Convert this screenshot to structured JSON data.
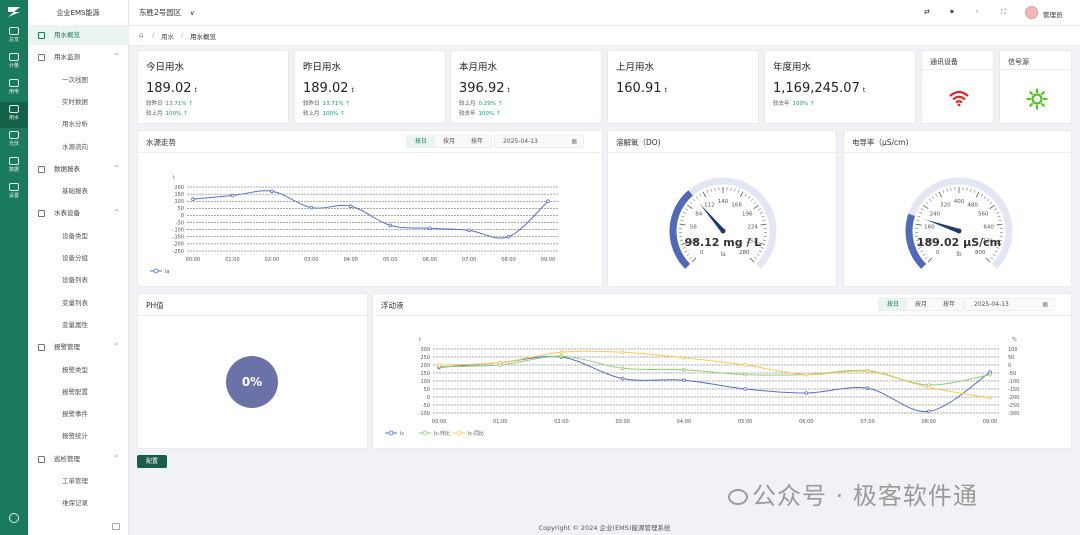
{
  "rail": [
    {
      "label": "总览",
      "icon": "dashboard-icon"
    },
    {
      "label": "计量",
      "icon": "meter-icon"
    },
    {
      "label": "用电",
      "icon": "electricity-icon"
    },
    {
      "label": "用水",
      "icon": "water-icon",
      "active": true
    },
    {
      "label": "光伏",
      "icon": "solar-icon"
    },
    {
      "label": "数据",
      "icon": "data-icon"
    },
    {
      "label": "设置",
      "icon": "settings-icon"
    }
  ],
  "brand": "企业EMS能源",
  "sidebar": [
    {
      "label": "用水概览",
      "type": "top",
      "active": true,
      "icon": "star-icon"
    },
    {
      "label": "用水监测",
      "type": "top",
      "caret": "^",
      "icon": "monitor-icon"
    },
    {
      "label": "一次线图",
      "type": "sub"
    },
    {
      "label": "实时数据",
      "type": "sub"
    },
    {
      "label": "用水分析",
      "type": "sub"
    },
    {
      "label": "水源流向",
      "type": "sub"
    },
    {
      "label": "数据报表",
      "type": "top",
      "caret": "^",
      "icon": "report-icon"
    },
    {
      "label": "基础报表",
      "type": "sub"
    },
    {
      "label": "水表设备",
      "type": "top",
      "caret": "^",
      "icon": "device-icon"
    },
    {
      "label": "设备类型",
      "type": "sub"
    },
    {
      "label": "设备分组",
      "type": "sub"
    },
    {
      "label": "设备列表",
      "type": "sub"
    },
    {
      "label": "变量列表",
      "type": "sub"
    },
    {
      "label": "变量属性",
      "type": "sub"
    },
    {
      "label": "报警管理",
      "type": "top",
      "caret": "^",
      "icon": "alarm-icon"
    },
    {
      "label": "报警类型",
      "type": "sub"
    },
    {
      "label": "报警配置",
      "type": "sub"
    },
    {
      "label": "报警事件",
      "type": "sub"
    },
    {
      "label": "报警统计",
      "type": "sub"
    },
    {
      "label": "巡检管理",
      "type": "top",
      "caret": "^",
      "icon": "inspect-icon"
    },
    {
      "label": "工单管理",
      "type": "sub"
    },
    {
      "label": "维保记录",
      "type": "sub"
    }
  ],
  "topbar": {
    "location": "东胜2号园区",
    "location_caret": "∨",
    "user": "管理员"
  },
  "breadcrumb": {
    "home": "⌂",
    "sep": "/",
    "items": [
      "用水",
      "用水概览"
    ]
  },
  "stats": [
    {
      "title": "今日用水",
      "value": "189.02",
      "unit": "t",
      "lines": [
        {
          "label": "较昨日",
          "pct": "13.71%"
        },
        {
          "label": "较上月",
          "pct": "100%"
        }
      ]
    },
    {
      "title": "昨日用水",
      "value": "189.02",
      "unit": "t",
      "lines": [
        {
          "label": "较昨日",
          "pct": "13.71%"
        },
        {
          "label": "较上月",
          "pct": "100%"
        }
      ]
    },
    {
      "title": "本月用水",
      "value": "396.92",
      "unit": "t",
      "lines": [
        {
          "label": "较上月",
          "pct": "0.29%"
        },
        {
          "label": "较去年",
          "pct": "100%"
        }
      ]
    },
    {
      "title": "上月用水",
      "value": "160.91",
      "unit": "t",
      "lines": []
    },
    {
      "title": "年度用水",
      "value": "1,169,245.07",
      "unit": "t",
      "lines": [
        {
          "label": "较去年",
          "pct": "100%"
        }
      ]
    }
  ],
  "status_cards": [
    {
      "title": "通讯设备",
      "icon": "wifi-icon",
      "color": "#e02424"
    },
    {
      "title": "信号源",
      "icon": "signal-icon",
      "color": "#52c41a"
    }
  ],
  "tabs": [
    "按日",
    "按月",
    "按年"
  ],
  "date": "2025-04-13",
  "gauges": [
    {
      "title": "溶解氧（DO)",
      "value": 98.12,
      "unit": "mg / L",
      "display": "98.12 mg / L",
      "series": "la",
      "min": 0,
      "max": 280,
      "ticks": [
        "0",
        "28",
        "56",
        "84",
        "112",
        "140",
        "168",
        "196",
        "224",
        "252",
        "280"
      ]
    },
    {
      "title": "电导率（μS/cm)",
      "value": 189.02,
      "unit": "μS/cm",
      "display": "189.02 μS/cm",
      "series": "lb",
      "min": 0,
      "max": 800,
      "ticks": [
        "0",
        "80",
        "160",
        "240",
        "320",
        "400",
        "480",
        "560",
        "640",
        "720",
        "800"
      ]
    }
  ],
  "ph": {
    "title": "PH值",
    "value": "0%"
  },
  "config_label": "配置",
  "footer": "Copyright © 2024 企业(EMS)能源管理系统",
  "watermark": "公众号 · 极客软件通",
  "chart_data": [
    {
      "type": "line",
      "title": "水源走势",
      "ylabel": "t",
      "x": [
        "00:00",
        "01:00",
        "02:00",
        "03:00",
        "04:00",
        "05:00",
        "06:00",
        "07:00",
        "08:00",
        "09:00"
      ],
      "yticks": [
        200,
        150,
        100,
        50,
        0,
        -50,
        -100,
        -150,
        -200,
        -250
      ],
      "ylim": [
        -250,
        200
      ],
      "series": [
        {
          "name": "la",
          "color": "#5470c6",
          "values": [
            115,
            140,
            170,
            55,
            65,
            -70,
            -90,
            -105,
            -150,
            100
          ]
        }
      ],
      "legend": "bottom-left",
      "grid": true
    },
    {
      "type": "line",
      "title": "浮动液",
      "ylabel": "t",
      "y2label": "%",
      "x": [
        "00:00",
        "01:00",
        "02:00",
        "03:00",
        "04:00",
        "05:00",
        "06:00",
        "07:00",
        "08:00",
        "09:00"
      ],
      "yticks": [
        300,
        250,
        200,
        150,
        100,
        50,
        0,
        -50,
        -100
      ],
      "ylim": [
        -100,
        300
      ],
      "y2ticks": [
        100,
        50,
        0,
        -50,
        -100,
        -150,
        -200,
        -250,
        -300
      ],
      "y2lim": [
        -300,
        100
      ],
      "series": [
        {
          "name": "lc",
          "color": "#5470c6",
          "axis": "left",
          "values": [
            185,
            215,
            250,
            115,
            105,
            50,
            25,
            55,
            -90,
            155
          ]
        },
        {
          "name": "lc-环比",
          "color": "#91cc75",
          "axis": "left",
          "values": [
            190,
            200,
            255,
            180,
            170,
            140,
            140,
            165,
            75,
            140
          ]
        },
        {
          "name": "lc-同比",
          "color": "#fac858",
          "axis": "left",
          "values": [
            200,
            215,
            280,
            280,
            245,
            200,
            140,
            160,
            60,
            -5
          ]
        }
      ],
      "legend": "bottom-left",
      "grid": true
    }
  ]
}
